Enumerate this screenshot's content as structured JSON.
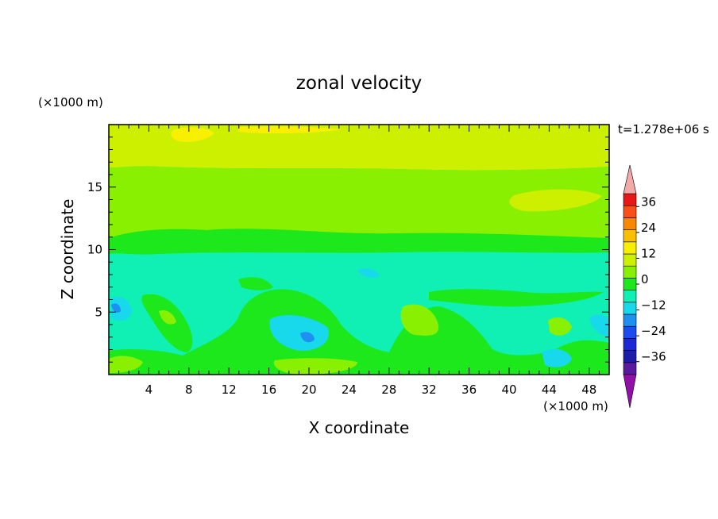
{
  "chart_data": {
    "type": "heatmap",
    "title": "zonal velocity",
    "xlabel": "X coordinate",
    "ylabel": "Z coordinate",
    "x_unit": "(×1000 m)",
    "y_unit": "(×1000 m)",
    "time_label": "t=1.278e+06 s",
    "xlim": [
      0,
      50
    ],
    "ylim": [
      0,
      20
    ],
    "x_ticks": [
      "4",
      "8",
      "12",
      "16",
      "20",
      "24",
      "28",
      "32",
      "36",
      "40",
      "44",
      "48"
    ],
    "y_ticks": [
      "5",
      "10",
      "15"
    ],
    "colorbar": {
      "levels": [
        -42,
        -36,
        -30,
        -24,
        -18,
        -12,
        -6,
        0,
        6,
        12,
        18,
        24,
        30,
        36,
        42
      ],
      "labels": [
        "-36",
        "-24",
        "-12",
        "0",
        "12",
        "24",
        "36"
      ],
      "colors": [
        "#5a1aa0",
        "#1c1ca8",
        "#1c28d8",
        "#1c4cf0",
        "#1e90f0",
        "#18d8ec",
        "#10f0b4",
        "#1ce81c",
        "#88f000",
        "#ccf000",
        "#f8f000",
        "#f8c000",
        "#f88800",
        "#f85018",
        "#e81818"
      ],
      "under_color": "#9010a8",
      "over_color": "#f4a8a8"
    },
    "fields": [
      {
        "z_range": [
          18.5,
          20
        ],
        "value": "6 to 12",
        "note": "light yellow-green with yellow patches near top"
      },
      {
        "z_range": [
          16.5,
          18.5
        ],
        "value": "6 to 12"
      },
      {
        "z_range": [
          11.5,
          16.5
        ],
        "value": "0 to 6"
      },
      {
        "z_range": [
          9.5,
          11.5
        ],
        "value": "-6 to 0"
      },
      {
        "z_range": [
          0,
          9.5
        ],
        "value": "-12 to 6",
        "note": "mixed cyan and green cells; minimum about -18 near x=20, z=3"
      }
    ]
  }
}
